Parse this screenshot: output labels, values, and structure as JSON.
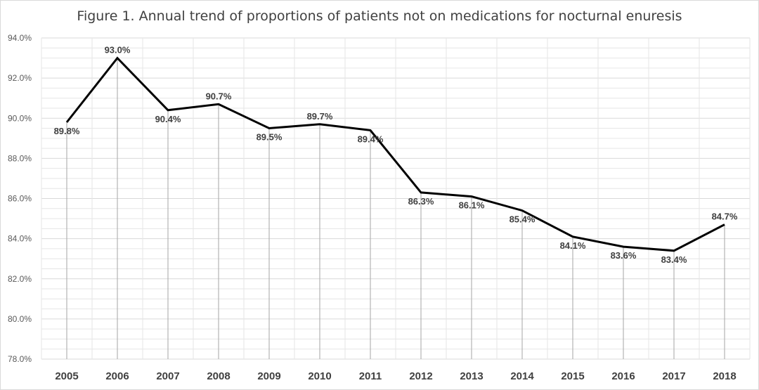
{
  "chart_data": {
    "type": "line",
    "title": "Figure 1. Annual trend of proportions of patients not on medications for nocturnal enuresis",
    "xlabel": "",
    "ylabel": "",
    "x": [
      "2005",
      "2006",
      "2007",
      "2008",
      "2009",
      "2010",
      "2011",
      "2012",
      "2013",
      "2014",
      "2015",
      "2016",
      "2017",
      "2018"
    ],
    "series": [
      {
        "values": [
          89.8,
          93.0,
          90.4,
          90.7,
          89.5,
          89.7,
          89.4,
          86.3,
          86.1,
          85.4,
          84.1,
          83.6,
          83.4,
          84.7
        ],
        "labels": [
          "89.8%",
          "93.0%",
          "90.4%",
          "90.7%",
          "89.5%",
          "89.7%",
          "89.4%",
          "86.3%",
          "86.1%",
          "85.4%",
          "84.1%",
          "83.6%",
          "83.4%",
          "84.7%"
        ]
      }
    ],
    "ylim": [
      78.0,
      94.0
    ],
    "yticks": [
      "78.0%",
      "80.0%",
      "82.0%",
      "84.0%",
      "86.0%",
      "88.0%",
      "90.0%",
      "92.0%",
      "94.0%"
    ],
    "grid": true,
    "drop_lines": true,
    "line_color": "#000000",
    "drop_line_color": "#a6a6a6",
    "grid_color": "#e6e6e6"
  }
}
